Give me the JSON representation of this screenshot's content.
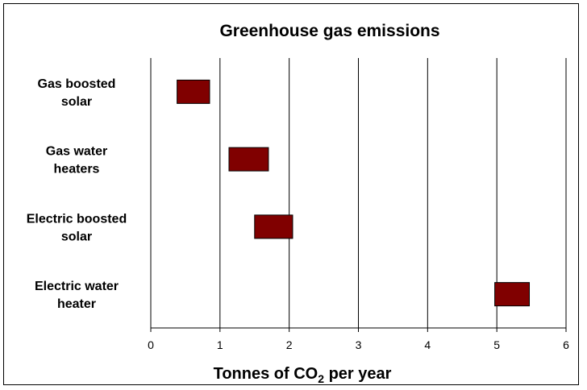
{
  "chart_data": {
    "type": "bar",
    "title": "Greenhouse gas emissions",
    "xlabel": {
      "prefix": "Tonnes of CO",
      "subscript": "2",
      "suffix": " per year"
    },
    "ylabel": "",
    "categories": [
      [
        "Gas boosted",
        "solar"
      ],
      [
        "Gas water",
        "heaters"
      ],
      [
        "Electric boosted",
        "solar"
      ],
      [
        "Electric water",
        "heater"
      ]
    ],
    "series": [
      {
        "ranges": [
          [
            0.38,
            0.85
          ],
          [
            1.13,
            1.7
          ],
          [
            1.5,
            2.05
          ],
          [
            4.97,
            5.47
          ]
        ]
      }
    ],
    "xlim": [
      0,
      6
    ],
    "xticks": [
      0,
      1,
      2,
      3,
      4,
      5,
      6
    ],
    "grid": "vertical",
    "legend": "none",
    "bar_color": "#800000",
    "orientation": "horizontal"
  }
}
